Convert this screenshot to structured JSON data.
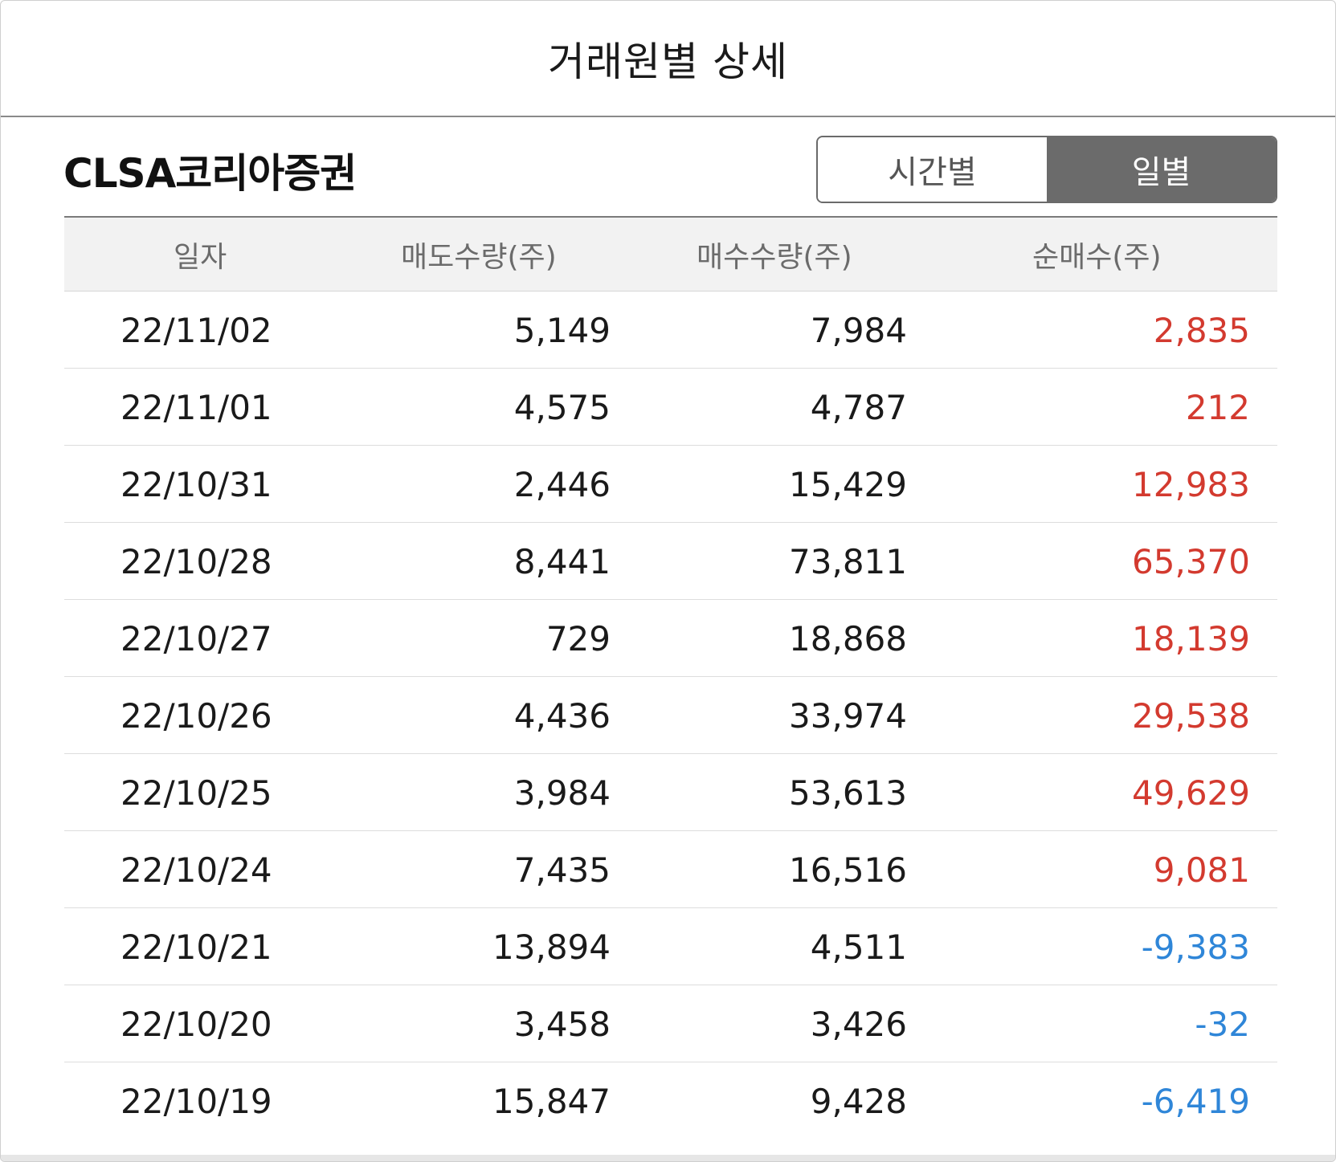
{
  "header": {
    "title": "거래원별 상세"
  },
  "broker": {
    "name": "CLSA코리아증권"
  },
  "toggle": {
    "options": [
      {
        "label": "시간별",
        "active": false
      },
      {
        "label": "일별",
        "active": true
      }
    ]
  },
  "table": {
    "columns": [
      "일자",
      "매도수량(주)",
      "매수수량(주)",
      "순매수(주)"
    ],
    "rows": [
      {
        "date": "22/11/02",
        "sell": "5,149",
        "buy": "7,984",
        "net": "2,835",
        "sign": "pos"
      },
      {
        "date": "22/11/01",
        "sell": "4,575",
        "buy": "4,787",
        "net": "212",
        "sign": "pos"
      },
      {
        "date": "22/10/31",
        "sell": "2,446",
        "buy": "15,429",
        "net": "12,983",
        "sign": "pos"
      },
      {
        "date": "22/10/28",
        "sell": "8,441",
        "buy": "73,811",
        "net": "65,370",
        "sign": "pos"
      },
      {
        "date": "22/10/27",
        "sell": "729",
        "buy": "18,868",
        "net": "18,139",
        "sign": "pos"
      },
      {
        "date": "22/10/26",
        "sell": "4,436",
        "buy": "33,974",
        "net": "29,538",
        "sign": "pos"
      },
      {
        "date": "22/10/25",
        "sell": "3,984",
        "buy": "53,613",
        "net": "49,629",
        "sign": "pos"
      },
      {
        "date": "22/10/24",
        "sell": "7,435",
        "buy": "16,516",
        "net": "9,081",
        "sign": "pos"
      },
      {
        "date": "22/10/21",
        "sell": "13,894",
        "buy": "4,511",
        "net": "-9,383",
        "sign": "neg"
      },
      {
        "date": "22/10/20",
        "sell": "3,458",
        "buy": "3,426",
        "net": "-32",
        "sign": "neg"
      },
      {
        "date": "22/10/19",
        "sell": "15,847",
        "buy": "9,428",
        "net": "-6,419",
        "sign": "neg"
      }
    ]
  },
  "colors": {
    "positive": "#d33a2f",
    "negative": "#2f86d8",
    "toggle_active_bg": "#6b6b6b"
  }
}
